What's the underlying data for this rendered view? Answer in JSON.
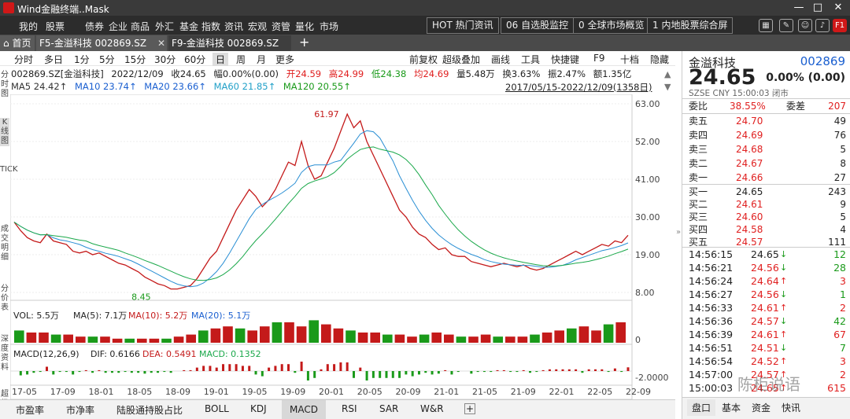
{
  "window": {
    "title": "Wind金融终端..Mask",
    "min_btn": "—",
    "max_btn": "□",
    "close_btn": "✕"
  },
  "menu": [
    "我的",
    "股票",
    "债券",
    "企业",
    "商品",
    "外汇",
    "基金",
    "指数",
    "资讯",
    "宏观",
    "资管",
    "量化",
    "市场"
  ],
  "hot_boxes": [
    "HOT  热门资讯",
    "06  自选股监控",
    "0  全球市场概览",
    "1  内地股票综合屏"
  ],
  "hot_badge": "F1",
  "tabs": [
    "首页",
    "F5-金溢科技 002869.SZ",
    "F9-金溢科技 002869.SZ"
  ],
  "periods": [
    "分时",
    "多日",
    "1分",
    "5分",
    "15分",
    "30分",
    "60分",
    "日",
    "周",
    "月",
    "更多"
  ],
  "tools": [
    "前复权",
    "超级叠加",
    "画线",
    "工具",
    "快捷键",
    "F9",
    "十档",
    "隐藏"
  ],
  "quote_line": {
    "code": "002869.SZ[金溢科技]",
    "date": "2022/12/09",
    "close": "收24.65",
    "change": "幅0.00%(0.00)",
    "open": "开24.59",
    "high": "高24.99",
    "low": "低24.38",
    "avg": "均24.69",
    "vol": "量5.48万",
    "turnover": "换3.63%",
    "amplitude": "振2.47%",
    "amount": "额1.35亿"
  },
  "ma_line": {
    "ma5": "MA5 24.42↑",
    "ma10": "MA10 23.74↑",
    "ma20": "MA20 23.66↑",
    "ma60": "MA60 21.85↑",
    "ma120": "MA120 20.55↑",
    "range": "2017/05/15-2022/12/09(1358日)"
  },
  "left_tabs": [
    "分时图",
    "K线图",
    "TICK",
    "成交明细",
    "分价表",
    "深度资料",
    "超级"
  ],
  "chart_data": {
    "type": "line",
    "title": "",
    "xlabel": "",
    "ylabel": "",
    "ylim": [
      8.0,
      63.0
    ],
    "y_ticks": [
      "63.00",
      "52.00",
      "41.00",
      "30.00",
      "19.00",
      "8.00"
    ],
    "x_ticks": [
      "17-05",
      "17-09",
      "18-01",
      "18-05",
      "18-09",
      "19-01",
      "19-05",
      "19-09",
      "20-01",
      "20-05",
      "20-09",
      "21-01",
      "21-05",
      "21-09",
      "22-01",
      "22-05",
      "22-09"
    ],
    "annotations": {
      "high": "61.97",
      "low": "8.45"
    },
    "close_series": [
      28.5,
      26,
      24,
      23,
      22.5,
      25,
      23,
      22.5,
      22,
      20,
      19.5,
      20,
      19,
      19.5,
      18.5,
      17.5,
      16.5,
      16,
      15,
      14,
      12.5,
      11.5,
      10.5,
      10,
      9,
      9,
      9.5,
      10,
      12,
      15,
      18,
      20,
      24,
      28,
      32,
      35,
      38,
      36,
      33,
      35,
      38,
      42,
      46,
      45,
      52,
      45,
      41,
      42,
      46,
      50,
      55,
      60,
      56,
      58,
      52,
      48,
      44,
      40,
      36,
      32,
      30,
      27,
      25,
      24,
      22,
      20.5,
      21,
      19,
      18.5,
      18.5,
      17,
      16.5,
      16,
      15.5,
      16,
      16.5,
      16,
      15.5,
      16,
      15,
      14.5,
      15,
      16,
      17,
      18,
      19,
      20,
      19,
      20,
      21,
      22,
      21.5,
      23,
      22.5,
      24.65
    ],
    "ma_series": [
      {
        "name": "MA20",
        "color": "#2a8fd4"
      },
      {
        "name": "MA60",
        "color": "#1aa84a"
      }
    ],
    "vol_panel": {
      "label": "VOL: 5.5万",
      "ma5": "MA(5): 7.1万",
      "ma10": "MA(10): 5.2万",
      "ma20": "MA(20): 5.1万",
      "axis": "0",
      "values": [
        0.6,
        0.5,
        0.5,
        0.4,
        0.4,
        0.3,
        0.3,
        0.3,
        0.2,
        0.2,
        0.2,
        0.2,
        0.2,
        0.3,
        0.4,
        0.6,
        0.7,
        0.8,
        0.7,
        0.6,
        0.8,
        1.0,
        1.0,
        0.8,
        1.1,
        0.9,
        0.7,
        0.6,
        0.5,
        0.5,
        0.4,
        0.4,
        0.3,
        0.4,
        0.5,
        0.4,
        0.3,
        0.3,
        0.4,
        0.3,
        0.3,
        0.3,
        0.4,
        0.5,
        0.6,
        0.7,
        0.8,
        0.6,
        0.9,
        1.0
      ]
    },
    "macd_panel": {
      "label": "MACD(12,26,9)",
      "dif": "DIF: 0.6166",
      "dea": "DEA: 0.5491",
      "macd": "MACD: 0.1352",
      "axis": "-2.0000"
    }
  },
  "bottom_tabs": [
    "市盈率",
    "市净率",
    "陆股通持股占比",
    "BOLL",
    "KDJ",
    "MACD",
    "RSI",
    "SAR",
    "W&R"
  ],
  "right_panel": {
    "name": "金溢科技",
    "code": "002869",
    "price": "24.65",
    "change": "0.00% (0.00)",
    "exchange": "SZSE  CNY  15:00:03  闭市",
    "webi_label": "委比",
    "webi_value": "38.55%",
    "weicha_label": "委差",
    "weicha_value": "207",
    "asks": [
      {
        "label": "卖五",
        "price": "24.70",
        "vol": "49"
      },
      {
        "label": "卖四",
        "price": "24.69",
        "vol": "76"
      },
      {
        "label": "卖三",
        "price": "24.68",
        "vol": "5"
      },
      {
        "label": "卖二",
        "price": "24.67",
        "vol": "8"
      },
      {
        "label": "卖一",
        "price": "24.66",
        "vol": "27"
      }
    ],
    "bids": [
      {
        "label": "买一",
        "price": "24.65",
        "vol": "243"
      },
      {
        "label": "买二",
        "price": "24.61",
        "vol": "9"
      },
      {
        "label": "买三",
        "price": "24.60",
        "vol": "5"
      },
      {
        "label": "买四",
        "price": "24.58",
        "vol": "4"
      },
      {
        "label": "买五",
        "price": "24.57",
        "vol": "111"
      }
    ],
    "trades": [
      {
        "time": "14:56:15",
        "price": "24.65",
        "dir": "↓",
        "vol": "12",
        "price_color": "#222",
        "dir_color": "#1a9a1a",
        "vol_color": "#1a9a1a"
      },
      {
        "time": "14:56:21",
        "price": "24.56",
        "dir": "↓",
        "vol": "28",
        "price_color": "#e02020",
        "dir_color": "#1a9a1a",
        "vol_color": "#1a9a1a"
      },
      {
        "time": "14:56:24",
        "price": "24.64",
        "dir": "↑",
        "vol": "3",
        "price_color": "#e02020",
        "dir_color": "#e02020",
        "vol_color": "#e02020"
      },
      {
        "time": "14:56:27",
        "price": "24.56",
        "dir": "↓",
        "vol": "1",
        "price_color": "#e02020",
        "dir_color": "#1a9a1a",
        "vol_color": "#1a9a1a"
      },
      {
        "time": "14:56:33",
        "price": "24.61",
        "dir": "↑",
        "vol": "2",
        "price_color": "#e02020",
        "dir_color": "#e02020",
        "vol_color": "#e02020"
      },
      {
        "time": "14:56:36",
        "price": "24.57",
        "dir": "↓",
        "vol": "42",
        "price_color": "#e02020",
        "dir_color": "#1a9a1a",
        "vol_color": "#1a9a1a"
      },
      {
        "time": "14:56:39",
        "price": "24.61",
        "dir": "↑",
        "vol": "67",
        "price_color": "#e02020",
        "dir_color": "#e02020",
        "vol_color": "#e02020"
      },
      {
        "time": "14:56:51",
        "price": "24.51",
        "dir": "↓",
        "vol": "7",
        "price_color": "#e02020",
        "dir_color": "#1a9a1a",
        "vol_color": "#1a9a1a"
      },
      {
        "time": "14:56:54",
        "price": "24.52",
        "dir": "↑",
        "vol": "3",
        "price_color": "#e02020",
        "dir_color": "#e02020",
        "vol_color": "#e02020"
      },
      {
        "time": "14:57:00",
        "price": "24.57",
        "dir": "↑",
        "vol": "2",
        "price_color": "#e02020",
        "dir_color": "#e02020",
        "vol_color": "#e02020"
      },
      {
        "time": "15:00:03",
        "price": "24.65",
        "dir": "↑",
        "vol": "615",
        "price_color": "#e02020",
        "dir_color": "#e02020",
        "vol_color": "#e02020"
      }
    ],
    "tabs": [
      "盘口",
      "基本",
      "资金",
      "快讯"
    ]
  },
  "watermark": "陈柜说语",
  "colors": {
    "up": "#e02020",
    "down": "#1a9a1a",
    "accent": "#1a5fd0"
  }
}
